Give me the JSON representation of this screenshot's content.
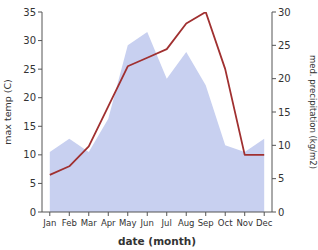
{
  "chart_data": {
    "type": "line",
    "categories": [
      "Jan",
      "Feb",
      "Mar",
      "Apr",
      "May",
      "Jun",
      "Jul",
      "Aug",
      "Sep",
      "Oct",
      "Nov",
      "Dec"
    ],
    "xlabel": "date (month)",
    "ylabel": "max temp (C)",
    "y2label": "med. precipitation (kg/m2)",
    "series": [
      {
        "type": "area",
        "axis": "y2",
        "color": "#c8d0f0",
        "values": [
          9,
          11,
          9,
          14,
          25,
          27,
          20,
          24,
          19,
          10,
          9,
          11
        ]
      },
      {
        "type": "line",
        "color": "#a03030",
        "values": [
          6.5,
          8.0,
          11.5,
          18.5,
          25.5,
          27.0,
          28.5,
          33.0,
          35.0,
          25.0,
          10.0,
          10.0
        ]
      }
    ],
    "ylim": [
      0,
      35
    ],
    "yticks": [
      0,
      5,
      10,
      15,
      20,
      25,
      30,
      35
    ],
    "y2lim": [
      0,
      30
    ],
    "y2ticks": [
      0,
      5,
      10,
      15,
      20,
      25,
      30
    ],
    "grid": false
  }
}
